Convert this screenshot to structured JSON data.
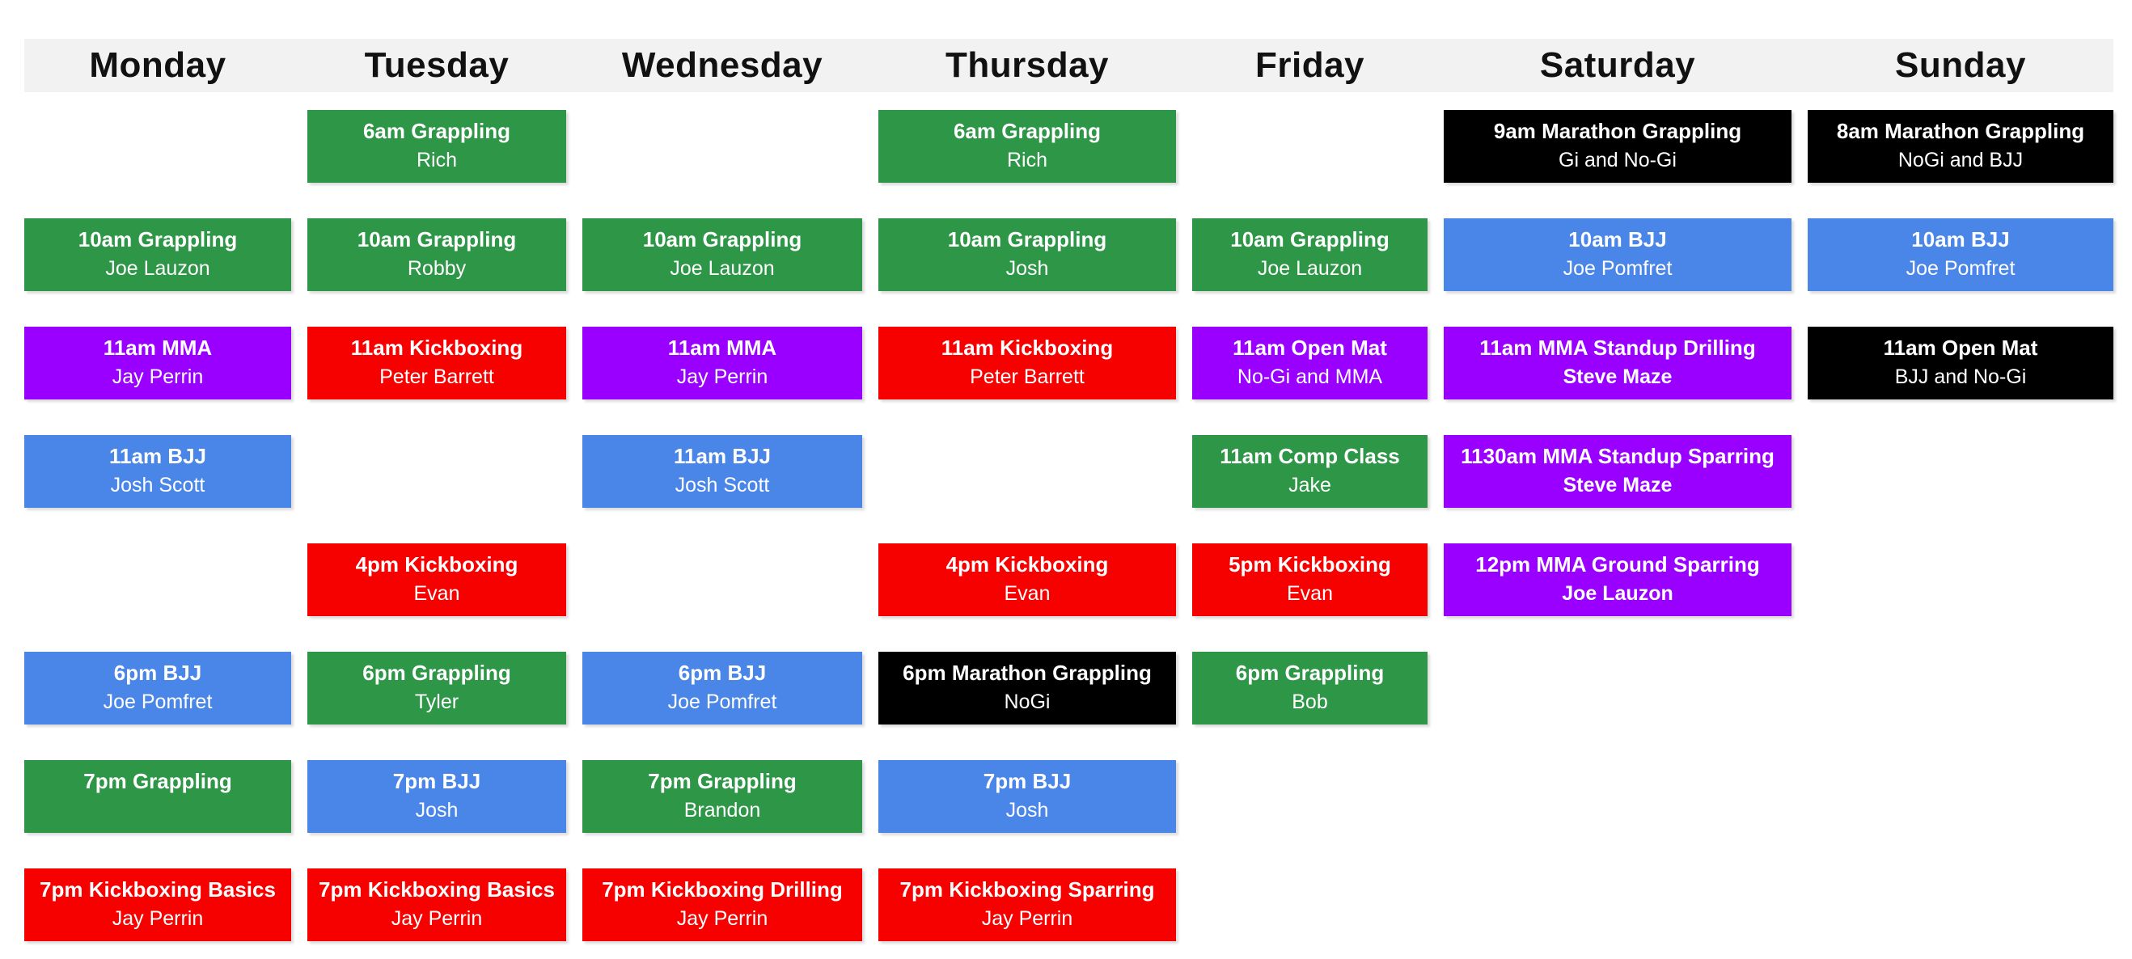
{
  "palette": {
    "green": "#2e9647",
    "blue": "#4a86e8",
    "red": "#f60000",
    "purple": "#9900ff",
    "black": "#000000",
    "header_bg": "#f2f2f2",
    "page_bg": "#ffffff",
    "day_text": "#111111",
    "event_text": "#ffffff"
  },
  "header": {
    "days": [
      "Monday",
      "Tuesday",
      "Wednesday",
      "Thursday",
      "Friday",
      "Saturday",
      "Sunday"
    ]
  },
  "schedule": {
    "events": [
      {
        "day": 1,
        "row": 1,
        "color": "green",
        "title": "6am Grappling",
        "subtitle": "Rich"
      },
      {
        "day": 3,
        "row": 1,
        "color": "green",
        "title": "6am Grappling",
        "subtitle": "Rich"
      },
      {
        "day": 5,
        "row": 1,
        "color": "black",
        "title": "9am Marathon Grappling",
        "subtitle": "Gi and No-Gi"
      },
      {
        "day": 6,
        "row": 1,
        "color": "black",
        "title": "8am Marathon Grappling",
        "subtitle": "NoGi and BJJ"
      },
      {
        "day": 0,
        "row": 2,
        "color": "green",
        "title": "10am Grappling",
        "subtitle": "Joe Lauzon"
      },
      {
        "day": 1,
        "row": 2,
        "color": "green",
        "title": "10am Grappling",
        "subtitle": "Robby"
      },
      {
        "day": 2,
        "row": 2,
        "color": "green",
        "title": "10am Grappling",
        "subtitle": "Joe Lauzon"
      },
      {
        "day": 3,
        "row": 2,
        "color": "green",
        "title": "10am Grappling",
        "subtitle": "Josh"
      },
      {
        "day": 4,
        "row": 2,
        "color": "green",
        "title": "10am Grappling",
        "subtitle": "Joe Lauzon"
      },
      {
        "day": 5,
        "row": 2,
        "color": "blue",
        "title": "10am BJJ",
        "subtitle": "Joe Pomfret"
      },
      {
        "day": 6,
        "row": 2,
        "color": "blue",
        "title": "10am BJJ",
        "subtitle": "Joe Pomfret"
      },
      {
        "day": 0,
        "row": 3,
        "color": "purple",
        "title": "11am MMA",
        "subtitle": "Jay Perrin"
      },
      {
        "day": 1,
        "row": 3,
        "color": "red",
        "title": "11am Kickboxing",
        "subtitle": "Peter Barrett"
      },
      {
        "day": 2,
        "row": 3,
        "color": "purple",
        "title": "11am MMA",
        "subtitle": "Jay Perrin"
      },
      {
        "day": 3,
        "row": 3,
        "color": "red",
        "title": "11am Kickboxing",
        "subtitle": "Peter Barrett"
      },
      {
        "day": 4,
        "row": 3,
        "color": "purple",
        "title": "11am Open Mat",
        "subtitle": "No-Gi and MMA"
      },
      {
        "day": 5,
        "row": 3,
        "color": "purple",
        "title": "11am MMA Standup Drilling",
        "subtitle": "Steve Maze",
        "subtitle_bold": true
      },
      {
        "day": 6,
        "row": 3,
        "color": "black",
        "title": "11am Open Mat",
        "subtitle": "BJJ and No-Gi"
      },
      {
        "day": 0,
        "row": 4,
        "color": "blue",
        "title": "11am BJJ",
        "subtitle": "Josh Scott"
      },
      {
        "day": 2,
        "row": 4,
        "color": "blue",
        "title": "11am BJJ",
        "subtitle": "Josh Scott"
      },
      {
        "day": 4,
        "row": 4,
        "color": "green",
        "title": "11am Comp Class",
        "subtitle": "Jake"
      },
      {
        "day": 5,
        "row": 4,
        "color": "purple",
        "title": "1130am MMA Standup Sparring",
        "subtitle": "Steve Maze",
        "subtitle_bold": true
      },
      {
        "day": 1,
        "row": 5,
        "color": "red",
        "title": "4pm Kickboxing",
        "subtitle": "Evan"
      },
      {
        "day": 3,
        "row": 5,
        "color": "red",
        "title": "4pm Kickboxing",
        "subtitle": "Evan"
      },
      {
        "day": 4,
        "row": 5,
        "color": "red",
        "title": "5pm Kickboxing",
        "subtitle": "Evan"
      },
      {
        "day": 5,
        "row": 5,
        "color": "purple",
        "title": "12pm MMA Ground Sparring",
        "subtitle": "Joe Lauzon",
        "subtitle_bold": true
      },
      {
        "day": 0,
        "row": 6,
        "color": "blue",
        "title": "6pm BJJ",
        "subtitle": "Joe Pomfret"
      },
      {
        "day": 1,
        "row": 6,
        "color": "green",
        "title": "6pm Grappling",
        "subtitle": "Tyler"
      },
      {
        "day": 2,
        "row": 6,
        "color": "blue",
        "title": "6pm BJJ",
        "subtitle": "Joe Pomfret"
      },
      {
        "day": 3,
        "row": 6,
        "color": "black",
        "title": "6pm Marathon Grappling",
        "subtitle": "NoGi"
      },
      {
        "day": 4,
        "row": 6,
        "color": "green",
        "title": "6pm Grappling",
        "subtitle": "Bob"
      },
      {
        "day": 0,
        "row": 7,
        "color": "green",
        "title": "7pm Grappling",
        "subtitle": ""
      },
      {
        "day": 1,
        "row": 7,
        "color": "blue",
        "title": "7pm BJJ",
        "subtitle": "Josh"
      },
      {
        "day": 2,
        "row": 7,
        "color": "green",
        "title": "7pm Grappling",
        "subtitle": "Brandon"
      },
      {
        "day": 3,
        "row": 7,
        "color": "blue",
        "title": "7pm BJJ",
        "subtitle": "Josh"
      },
      {
        "day": 0,
        "row": 8,
        "color": "red",
        "title": "7pm Kickboxing Basics",
        "subtitle": "Jay Perrin"
      },
      {
        "day": 1,
        "row": 8,
        "color": "red",
        "title": "7pm Kickboxing Basics",
        "subtitle": "Jay Perrin"
      },
      {
        "day": 2,
        "row": 8,
        "color": "red",
        "title": "7pm Kickboxing Drilling",
        "subtitle": "Jay Perrin"
      },
      {
        "day": 3,
        "row": 8,
        "color": "red",
        "title": "7pm Kickboxing Sparring",
        "subtitle": "Jay Perrin"
      }
    ]
  }
}
